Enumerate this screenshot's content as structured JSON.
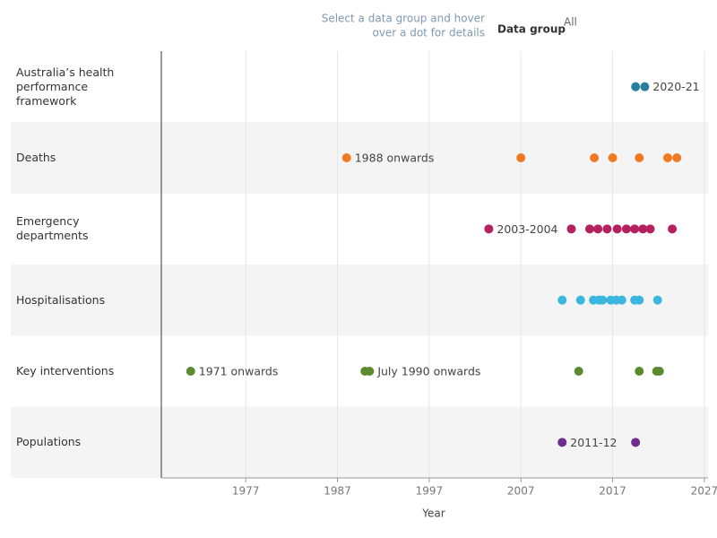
{
  "chart_data": {
    "type": "timeline",
    "instructions": [
      "Select a data group and hover",
      "over a dot for details"
    ],
    "filter_label": "Data group",
    "filter_value": "All",
    "xlabel": "Year",
    "xlim": [
      1967.8,
      2027.4
    ],
    "xticks": [
      1977,
      1987,
      1997,
      2007,
      2017,
      2027
    ],
    "series": [
      {
        "name": "Australia’s health performance framework",
        "color": "#2a7f9e",
        "x": [
          2019.5,
          2020.5
        ],
        "point_labels": [
          null,
          "2020-21"
        ]
      },
      {
        "name": "Deaths",
        "color": "#f07a22",
        "x": [
          1988,
          2007,
          2015,
          2017,
          2019.9,
          2023,
          2024
        ],
        "point_labels": [
          "1988 onwards",
          null,
          null,
          null,
          null,
          null,
          null
        ]
      },
      {
        "name": "Emergency departments",
        "color": "#b5215e",
        "x": [
          2003.5,
          2012.5,
          2014.5,
          2015.4,
          2016.4,
          2017.5,
          2018.5,
          2019.4,
          2020.3,
          2021.1,
          2023.5
        ],
        "point_labels": [
          "2003-2004",
          null,
          null,
          null,
          null,
          null,
          null,
          null,
          null,
          null,
          null
        ]
      },
      {
        "name": "Hospitalisations",
        "color": "#3ab6df",
        "x": [
          2011.5,
          2013.5,
          2014.9,
          2015.5,
          2015.9,
          2016.8,
          2017.4,
          2018,
          2019.4,
          2019.9,
          2021.9
        ],
        "point_labels": [
          null,
          null,
          null,
          null,
          null,
          null,
          null,
          null,
          null,
          null,
          null
        ]
      },
      {
        "name": "Key interventions",
        "color": "#5b8a2f",
        "x": [
          1971,
          1990,
          1990.5,
          2013.3,
          2019.9,
          2021.8,
          2022.1
        ],
        "point_labels": [
          "1971 onwards",
          null,
          "July 1990 onwards",
          null,
          null,
          null,
          null
        ]
      },
      {
        "name": "Populations",
        "color": "#6f2c91",
        "x": [
          2011.5,
          2019.5
        ],
        "point_labels": [
          "2011-12",
          null
        ]
      }
    ]
  }
}
